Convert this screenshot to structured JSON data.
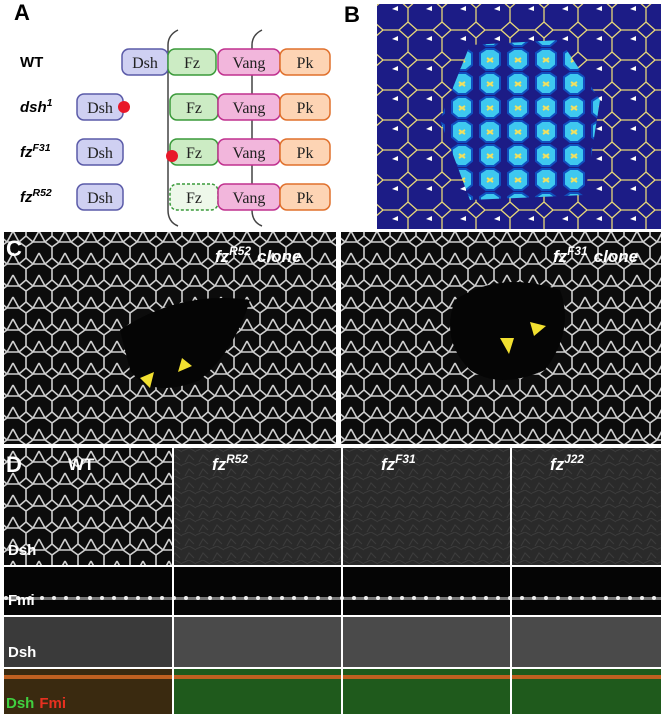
{
  "panel_a": {
    "label": "A",
    "rows": [
      {
        "genotype": {
          "base": "WT"
        },
        "proteins": [
          "Dsh",
          "Fz",
          "Vang",
          "Pk"
        ]
      },
      {
        "genotype": {
          "base": "dsh",
          "sup": "1"
        },
        "proteins": [
          "Dsh",
          "Fz",
          "Vang",
          "Pk"
        ]
      },
      {
        "genotype": {
          "base": "fz",
          "sup": "F31"
        },
        "proteins": [
          "Dsh",
          "Fz",
          "Vang",
          "Pk"
        ]
      },
      {
        "genotype": {
          "base": "fz",
          "sup": "R52"
        },
        "proteins": [
          "Dsh",
          "Fz",
          "Vang",
          "Pk"
        ]
      }
    ]
  },
  "panel_b": {
    "label": "B"
  },
  "panel_c": {
    "label": "C",
    "images": [
      {
        "base": "fz",
        "sup": "R52",
        "suffix": "clone"
      },
      {
        "base": "fz",
        "sup": "F31",
        "suffix": "clone"
      }
    ]
  },
  "panel_d": {
    "label": "D",
    "columns": [
      {
        "base": "WT"
      },
      {
        "base": "fz",
        "sup": "R52"
      },
      {
        "base": "fz",
        "sup": "F31"
      },
      {
        "base": "fz",
        "sup": "J22"
      }
    ],
    "row_labels": [
      "Dsh",
      "Fmi",
      "Dsh",
      {
        "green": "Dsh",
        "red": "Fmi"
      }
    ]
  }
}
